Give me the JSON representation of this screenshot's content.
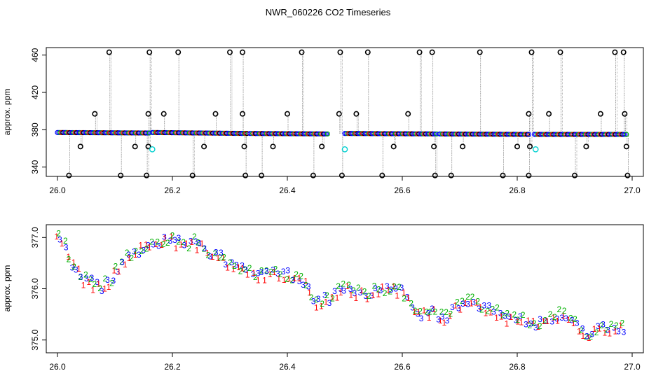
{
  "title": "NWR_060226  CO2 Timeseries",
  "colors": {
    "black": "#000000",
    "blue": "#0000ff",
    "green": "#00b000",
    "red": "#ff0000",
    "cyan": "#00d0d0",
    "gray": "#8c8c8c"
  },
  "chart_data": [
    {
      "type": "scatter",
      "title": "",
      "xlabel": "",
      "ylabel": "approx. ppm",
      "xlim": [
        26.0,
        27.0
      ],
      "ylim": [
        330,
        468
      ],
      "xticks": [
        26.0,
        26.2,
        26.4,
        26.6,
        26.8,
        27.0
      ],
      "xtick_labels": [
        "26.0",
        "26.2",
        "26.4",
        "26.6",
        "26.8",
        "27.0"
      ],
      "yticks": [
        340,
        380,
        420,
        460
      ],
      "ytick_labels": [
        "340",
        "380",
        "420",
        "460"
      ],
      "baseline": [
        [
          26.0,
          377
        ],
        [
          26.16,
          376.5
        ],
        [
          26.165,
          377
        ],
        [
          26.33,
          376
        ],
        [
          26.335,
          376
        ],
        [
          26.47,
          375.5
        ],
        [
          26.5,
          376
        ],
        [
          26.66,
          375.5
        ],
        [
          26.665,
          375.5
        ],
        [
          26.82,
          375
        ],
        [
          26.83,
          375
        ],
        [
          26.99,
          375
        ]
      ],
      "outliers": [
        [
          26.02,
          331
        ],
        [
          26.04,
          362
        ],
        [
          26.065,
          397
        ],
        [
          26.09,
          463
        ],
        [
          26.11,
          331
        ],
        [
          26.135,
          362
        ],
        [
          26.155,
          331
        ],
        [
          26.158,
          397
        ],
        [
          26.16,
          463
        ],
        [
          26.158,
          362
        ],
        [
          26.185,
          397
        ],
        [
          26.21,
          463
        ],
        [
          26.235,
          331
        ],
        [
          26.255,
          362
        ],
        [
          26.275,
          397
        ],
        [
          26.3,
          463
        ],
        [
          26.322,
          463
        ],
        [
          26.322,
          397
        ],
        [
          26.325,
          362
        ],
        [
          26.327,
          331
        ],
        [
          26.355,
          331
        ],
        [
          26.375,
          362
        ],
        [
          26.4,
          397
        ],
        [
          26.425,
          463
        ],
        [
          26.445,
          331
        ],
        [
          26.46,
          362
        ],
        [
          26.49,
          397
        ],
        [
          26.492,
          463
        ],
        [
          26.495,
          331
        ],
        [
          26.52,
          397
        ],
        [
          26.54,
          463
        ],
        [
          26.565,
          331
        ],
        [
          26.585,
          362
        ],
        [
          26.61,
          397
        ],
        [
          26.63,
          463
        ],
        [
          26.652,
          463
        ],
        [
          26.655,
          362
        ],
        [
          26.657,
          331
        ],
        [
          26.685,
          331
        ],
        [
          26.705,
          362
        ],
        [
          26.735,
          463
        ],
        [
          26.775,
          331
        ],
        [
          26.8,
          362
        ],
        [
          26.82,
          397
        ],
        [
          26.82,
          331
        ],
        [
          26.822,
          362
        ],
        [
          26.825,
          463
        ],
        [
          26.855,
          397
        ],
        [
          26.875,
          463
        ],
        [
          26.9,
          331
        ],
        [
          26.92,
          362
        ],
        [
          26.945,
          397
        ],
        [
          26.97,
          463
        ],
        [
          26.985,
          463
        ],
        [
          26.987,
          397
        ],
        [
          26.99,
          362
        ],
        [
          26.992,
          331
        ]
      ],
      "cyan_points": [
        [
          26.165,
          359
        ],
        [
          26.5,
          359
        ],
        [
          26.832,
          359
        ]
      ]
    },
    {
      "type": "scatter",
      "title": "",
      "xlabel": "",
      "ylabel": "approx. ppm",
      "xlim": [
        26.0,
        27.0
      ],
      "ylim": [
        374.75,
        377.25
      ],
      "xticks": [
        26.0,
        26.2,
        26.4,
        26.6,
        26.8,
        27.0
      ],
      "xtick_labels": [
        "26.0",
        "26.2",
        "26.4",
        "26.6",
        "26.8",
        "27.0"
      ],
      "yticks": [
        375.0,
        376.0,
        377.0
      ],
      "ytick_labels": [
        "375.0",
        "376.0",
        "377.0"
      ],
      "marker_labels": [
        "1",
        "2",
        "3"
      ],
      "trend": [
        [
          26.0,
          377.1
        ],
        [
          26.01,
          376.9
        ],
        [
          26.02,
          376.55
        ],
        [
          26.03,
          376.4
        ],
        [
          26.045,
          376.2
        ],
        [
          26.06,
          376.1
        ],
        [
          26.075,
          376.05
        ],
        [
          26.09,
          376.1
        ],
        [
          26.1,
          376.35
        ],
        [
          26.12,
          376.6
        ],
        [
          26.14,
          376.75
        ],
        [
          26.16,
          376.85
        ],
        [
          26.18,
          376.9
        ],
        [
          26.2,
          376.95
        ],
        [
          26.22,
          376.85
        ],
        [
          26.24,
          376.9
        ],
        [
          26.26,
          376.75
        ],
        [
          26.28,
          376.65
        ],
        [
          26.3,
          376.5
        ],
        [
          26.32,
          376.35
        ],
        [
          26.34,
          376.3
        ],
        [
          26.36,
          376.25
        ],
        [
          26.38,
          376.3
        ],
        [
          26.4,
          376.25
        ],
        [
          26.42,
          376.2
        ],
        [
          26.435,
          376.05
        ],
        [
          26.445,
          375.7
        ],
        [
          26.46,
          375.75
        ],
        [
          26.48,
          375.85
        ],
        [
          26.5,
          376.05
        ],
        [
          26.52,
          375.95
        ],
        [
          26.54,
          375.9
        ],
        [
          26.56,
          375.95
        ],
        [
          26.58,
          376.0
        ],
        [
          26.6,
          375.95
        ],
        [
          26.615,
          375.7
        ],
        [
          26.63,
          375.5
        ],
        [
          26.645,
          375.55
        ],
        [
          26.66,
          375.5
        ],
        [
          26.68,
          375.45
        ],
        [
          26.7,
          375.7
        ],
        [
          26.72,
          375.75
        ],
        [
          26.74,
          375.6
        ],
        [
          26.76,
          375.55
        ],
        [
          26.78,
          375.4
        ],
        [
          26.8,
          375.45
        ],
        [
          26.82,
          375.3
        ],
        [
          26.84,
          375.35
        ],
        [
          26.86,
          375.4
        ],
        [
          26.88,
          375.5
        ],
        [
          26.9,
          375.35
        ],
        [
          26.915,
          375.1
        ],
        [
          26.93,
          375.15
        ],
        [
          26.95,
          375.2
        ],
        [
          26.97,
          375.25
        ],
        [
          26.985,
          375.2
        ]
      ]
    }
  ]
}
